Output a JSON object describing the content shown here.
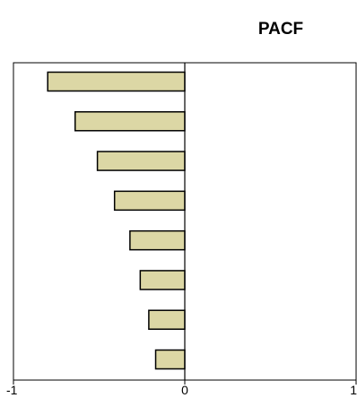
{
  "chart_data": {
    "type": "bar",
    "orientation": "horizontal",
    "title": "PACF",
    "xlabel": "",
    "ylabel": "",
    "xlim": [
      -1,
      1
    ],
    "x_tick_labels": [
      "-1",
      "0",
      "1"
    ],
    "x_ticks": [
      -1,
      0,
      1
    ],
    "grid": false,
    "legend": "none",
    "lags": [
      1,
      2,
      3,
      4,
      5,
      6,
      7,
      8
    ],
    "values": [
      -0.8,
      -0.64,
      -0.51,
      -0.41,
      -0.32,
      -0.26,
      -0.21,
      -0.17
    ],
    "colors": {
      "bar_fill": "#dcd7a5",
      "bar_stroke": "#000000",
      "axis": "#000000",
      "background": "#ffffff"
    }
  }
}
